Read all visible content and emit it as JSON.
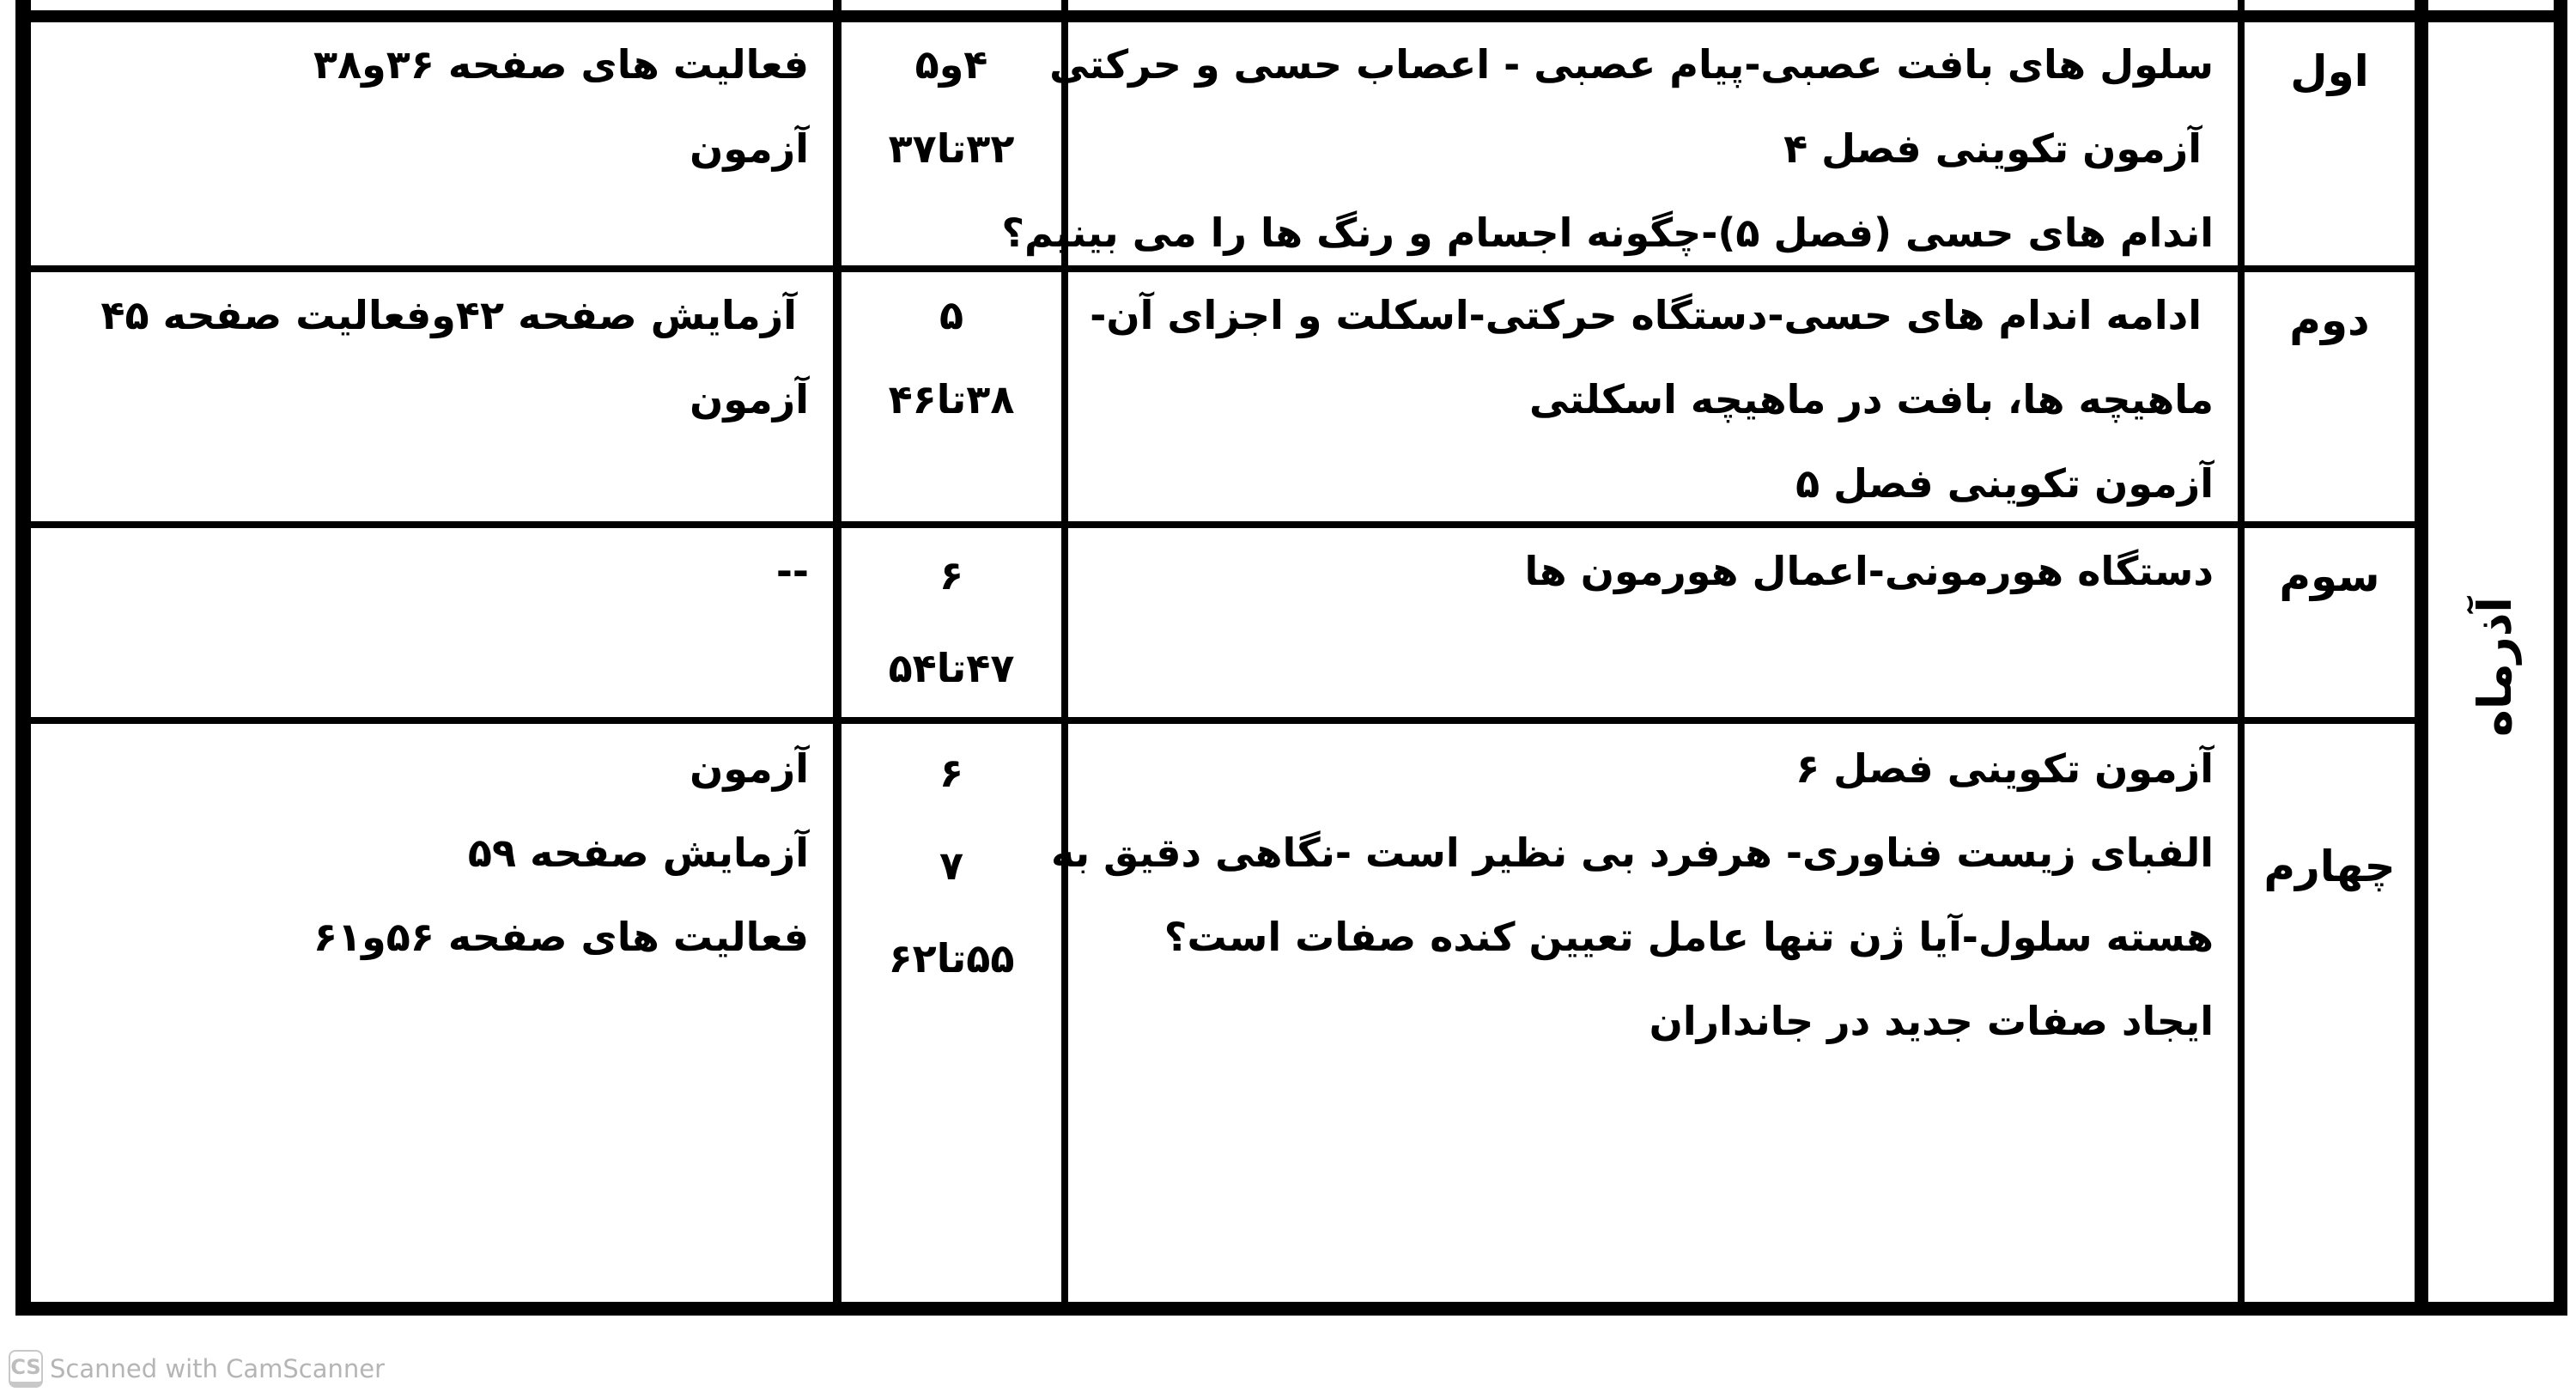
{
  "month": "آذرماه",
  "rows": [
    {
      "week": "اول",
      "topics": [
        "سلول های بافت عصبی-پیام عصبی - اعصاب حسی و حرکتی",
        "آزمون تکوینی فصل ۴",
        "اندام های حسی (فصل ۵)-چگونه اجسام و رنگ ها را می بینیم؟"
      ],
      "chapters": [
        "۴و۵",
        "۳۲تا۳۷"
      ],
      "activities": [
        "فعالیت های صفحه ۳۶و۳۸",
        "آزمون"
      ]
    },
    {
      "week": "دوم",
      "topics": [
        "ادامه اندام های حسی-دستگاه حرکتی-اسکلت و اجزای آن-",
        "ماهیچه ها، بافت در ماهیچه اسکلتی",
        "آزمون تکوینی فصل ۵"
      ],
      "chapters": [
        "۵",
        "۳۸تا۴۶"
      ],
      "activities": [
        "آزمایش صفحه ۴۲وفعالیت صفحه ۴۵",
        "آزمون"
      ]
    },
    {
      "week": "سوم",
      "topics": [
        "دستگاه هورمونی-اعمال هورمون ها"
      ],
      "chapters": [
        "۶",
        "۴۷تا۵۴"
      ],
      "activities": [
        "--"
      ]
    },
    {
      "week": "چهارم",
      "topics": [
        "آزمون تکوینی فصل ۶",
        "الفبای زیست فناوری- هرفرد بی نظیر است -نگاهی دقیق به",
        "هسته سلول-آیا ژن تنها عامل تعیین کنده صفات است؟",
        "ایجاد صفات جدید در جانداران"
      ],
      "chapters": [
        "۶",
        "۷",
        "۵۵تا۶۲"
      ],
      "activities": [
        "آزمون",
        "آزمایش صفحه ۵۹",
        "فعالیت های صفحه ۵۶و۶۱"
      ]
    }
  ],
  "footer": {
    "logo": "CS",
    "text": "Scanned with CamScanner"
  }
}
